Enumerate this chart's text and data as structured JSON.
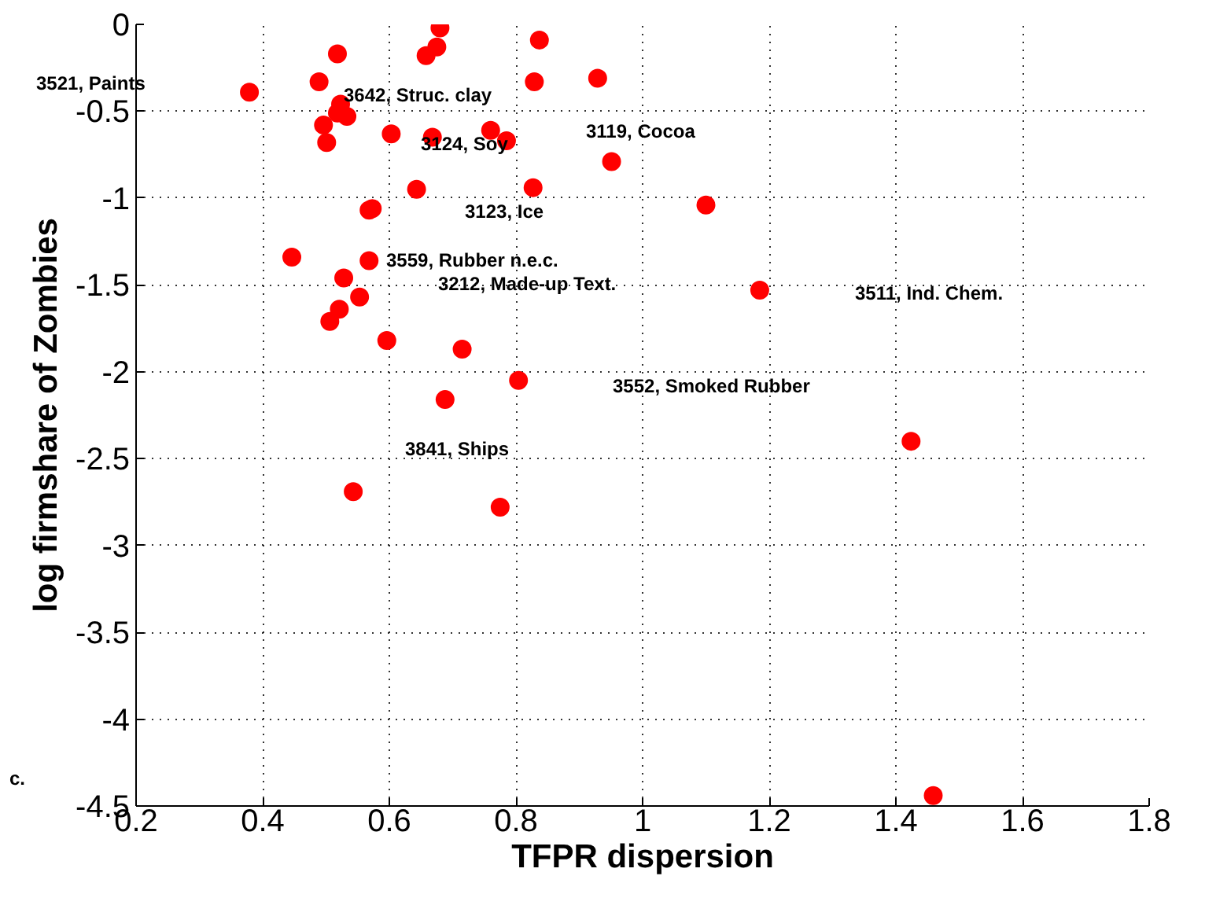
{
  "chart_data": {
    "type": "scatter",
    "xlabel": "TFPR dispersion",
    "ylabel": "log firmshare of Zombies",
    "xlim": [
      0.2,
      1.8
    ],
    "ylim": [
      -4.5,
      0
    ],
    "xticks": [
      0.2,
      0.4,
      0.6,
      0.8,
      1,
      1.2,
      1.4,
      1.6,
      1.8
    ],
    "yticks": [
      -4.5,
      -4,
      -3.5,
      -3,
      -2.5,
      -2,
      -1.5,
      -1,
      -0.5,
      0
    ],
    "grid": true,
    "marker": "circle",
    "series": [
      {
        "color": "#ff0000",
        "x": [
          0.68,
          0.837,
          0.518,
          0.658,
          0.675,
          0.929,
          0.829,
          0.489,
          0.379,
          0.523,
          0.518,
          0.533,
          0.496,
          0.501,
          0.603,
          0.668,
          0.76,
          0.785,
          0.951,
          0.643,
          0.827,
          0.568,
          0.573,
          0.446,
          0.568,
          0.528,
          0.553,
          1.1,
          1.185,
          1.424,
          0.521,
          0.506,
          0.596,
          0.715,
          0.804,
          0.688,
          0.543,
          0.775,
          1.459
        ],
        "values": [
          -0.02,
          -0.09,
          -0.17,
          -0.18,
          -0.13,
          -0.31,
          -0.33,
          -0.33,
          -0.39,
          -0.46,
          -0.51,
          -0.53,
          -0.58,
          -0.68,
          -0.63,
          -0.65,
          -0.61,
          -0.67,
          -0.79,
          -0.95,
          -0.94,
          -1.07,
          -1.06,
          -1.34,
          -1.36,
          -1.46,
          -1.57,
          -1.04,
          -1.53,
          -2.4,
          -1.64,
          -1.71,
          -1.82,
          -1.87,
          -2.05,
          -2.16,
          -2.69,
          -2.78,
          -4.44
        ]
      }
    ],
    "annotations": [
      "3521,  Paints",
      "3642,  Struc. clay",
      "3124,  Soy",
      "3119,  Cocoa",
      "3123,  Ice",
      "3559,  Rubber n.e.c.",
      "3212,  Made-up Text.",
      "3511,  Ind. Chem.",
      "3552,  Smoked Rubber",
      "3841,  Ships",
      "c."
    ]
  }
}
